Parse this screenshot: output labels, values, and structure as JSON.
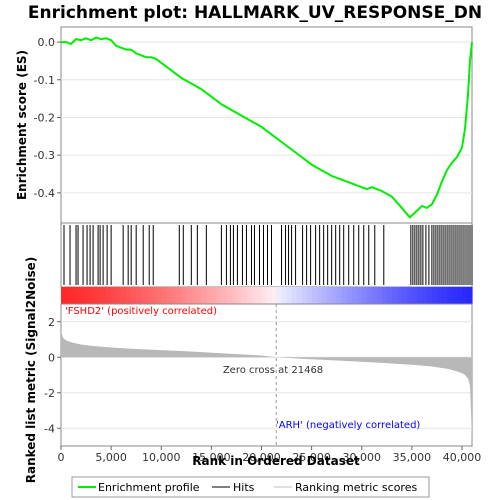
{
  "chart_data": {
    "type": "line",
    "title": "Enrichment plot: HALLMARK_UV_RESPONSE_DN",
    "xlabel": "Rank in Ordered Dataset",
    "ylabel_top": "Enrichment score (ES)",
    "ylabel_bottom": "Ranked list metric (Signal2Noise)",
    "x_ticks": [
      0,
      5000,
      10000,
      15000,
      20000,
      25000,
      30000,
      35000,
      40000
    ],
    "x_tick_labels": [
      "0",
      "5,000",
      "10,000",
      "15,000",
      "20,000",
      "25,000",
      "30,000",
      "35,000",
      "40,000"
    ],
    "xlim": [
      0,
      41000
    ],
    "es_ylim": [
      -0.48,
      0.04
    ],
    "es_ticks": [
      0.0,
      -0.1,
      -0.2,
      -0.3,
      -0.4
    ],
    "es_tick_labels": [
      "0.0",
      "-0.1",
      "-0.2",
      "-0.3",
      "-0.4"
    ],
    "metric_ylim": [
      -5,
      3
    ],
    "metric_ticks": [
      2,
      0,
      -2,
      -4
    ],
    "metric_tick_labels": [
      "2",
      "0",
      "-2",
      "-4"
    ],
    "es_curve": {
      "x": [
        0,
        500,
        1000,
        1500,
        2000,
        2500,
        3000,
        3500,
        4000,
        4500,
        5000,
        5500,
        6000,
        6500,
        7000,
        7500,
        8000,
        8500,
        9000,
        9500,
        10000,
        11000,
        12000,
        13000,
        14000,
        15000,
        16000,
        17000,
        18000,
        19000,
        20000,
        21000,
        22000,
        23000,
        24000,
        25000,
        26000,
        27000,
        28000,
        29000,
        30000,
        30500,
        31000,
        31500,
        32000,
        33000,
        34000,
        34800,
        35200,
        35600,
        36000,
        36500,
        37000,
        37500,
        38000,
        38500,
        39000,
        39500,
        40000,
        40300,
        40600,
        40800,
        41000
      ],
      "y": [
        0.0,
        0.0,
        -0.005,
        0.008,
        0.005,
        0.01,
        0.005,
        0.012,
        0.008,
        0.01,
        0.005,
        -0.01,
        -0.015,
        -0.02,
        -0.02,
        -0.03,
        -0.035,
        -0.04,
        -0.04,
        -0.045,
        -0.055,
        -0.075,
        -0.095,
        -0.11,
        -0.125,
        -0.145,
        -0.165,
        -0.18,
        -0.195,
        -0.21,
        -0.225,
        -0.245,
        -0.265,
        -0.285,
        -0.305,
        -0.325,
        -0.34,
        -0.355,
        -0.365,
        -0.375,
        -0.385,
        -0.39,
        -0.385,
        -0.39,
        -0.395,
        -0.41,
        -0.44,
        -0.465,
        -0.455,
        -0.445,
        -0.435,
        -0.44,
        -0.43,
        -0.405,
        -0.37,
        -0.34,
        -0.32,
        -0.305,
        -0.28,
        -0.23,
        -0.14,
        -0.05,
        0.0
      ]
    },
    "hits_x": [
      300,
      900,
      1500,
      1700,
      2200,
      2600,
      2900,
      3200,
      3700,
      3900,
      4200,
      4600,
      5000,
      6200,
      6700,
      7000,
      7500,
      8200,
      8800,
      9200,
      11800,
      12200,
      13000,
      13600,
      14500,
      16000,
      16500,
      16900,
      17200,
      17600,
      18100,
      18500,
      19000,
      19300,
      19800,
      20200,
      20600,
      21000,
      22000,
      22400,
      22700,
      23000,
      23400,
      24100,
      24500,
      24900,
      25400,
      25800,
      26200,
      26600,
      27000,
      27400,
      27800,
      28200,
      28700,
      29200,
      29700,
      30200,
      30700,
      31300,
      32200,
      34900,
      35100,
      35300,
      35500,
      35700,
      35900,
      36100,
      36400,
      36700,
      37000,
      37200,
      37400,
      37600,
      37800,
      38000,
      38200,
      38400,
      38600,
      38800,
      39000,
      39200,
      39400,
      39600,
      39800,
      40000,
      40200,
      40400,
      40600,
      40800,
      41000
    ],
    "metric": {
      "x": [
        0,
        200,
        500,
        1000,
        2000,
        3000,
        5000,
        8000,
        12000,
        16000,
        20000,
        21468,
        24000,
        28000,
        32000,
        35000,
        37000,
        38500,
        39500,
        40000,
        40300,
        40600,
        40800,
        40900,
        41000
      ],
      "y": [
        1.5,
        1.1,
        0.95,
        0.85,
        0.72,
        0.65,
        0.55,
        0.45,
        0.35,
        0.22,
        0.1,
        0.0,
        -0.08,
        -0.2,
        -0.32,
        -0.42,
        -0.52,
        -0.65,
        -0.8,
        -0.9,
        -1.0,
        -1.2,
        -1.6,
        -3.0,
        -4.8
      ]
    },
    "zero_cross_label": "Zero cross at 21468",
    "zero_cross_rank": 21468,
    "pos_label": "'FSHD2' (positively correlated)",
    "neg_label": "'ARH' (negatively correlated)",
    "colors": {
      "es_line": "#00ee00",
      "hits": "#000000",
      "metric_fill": "#b8b8b8",
      "pos_text": "#ff0000",
      "neg_text": "#0000ff",
      "bar_pos": "#ff0000",
      "bar_neg": "#0000ff"
    }
  },
  "legend": {
    "items": [
      {
        "label": "Enrichment profile",
        "color": "#00ee00"
      },
      {
        "label": "Hits",
        "color": "#000000"
      },
      {
        "label": "Ranking metric scores",
        "color": "#c0c0c0"
      }
    ]
  }
}
